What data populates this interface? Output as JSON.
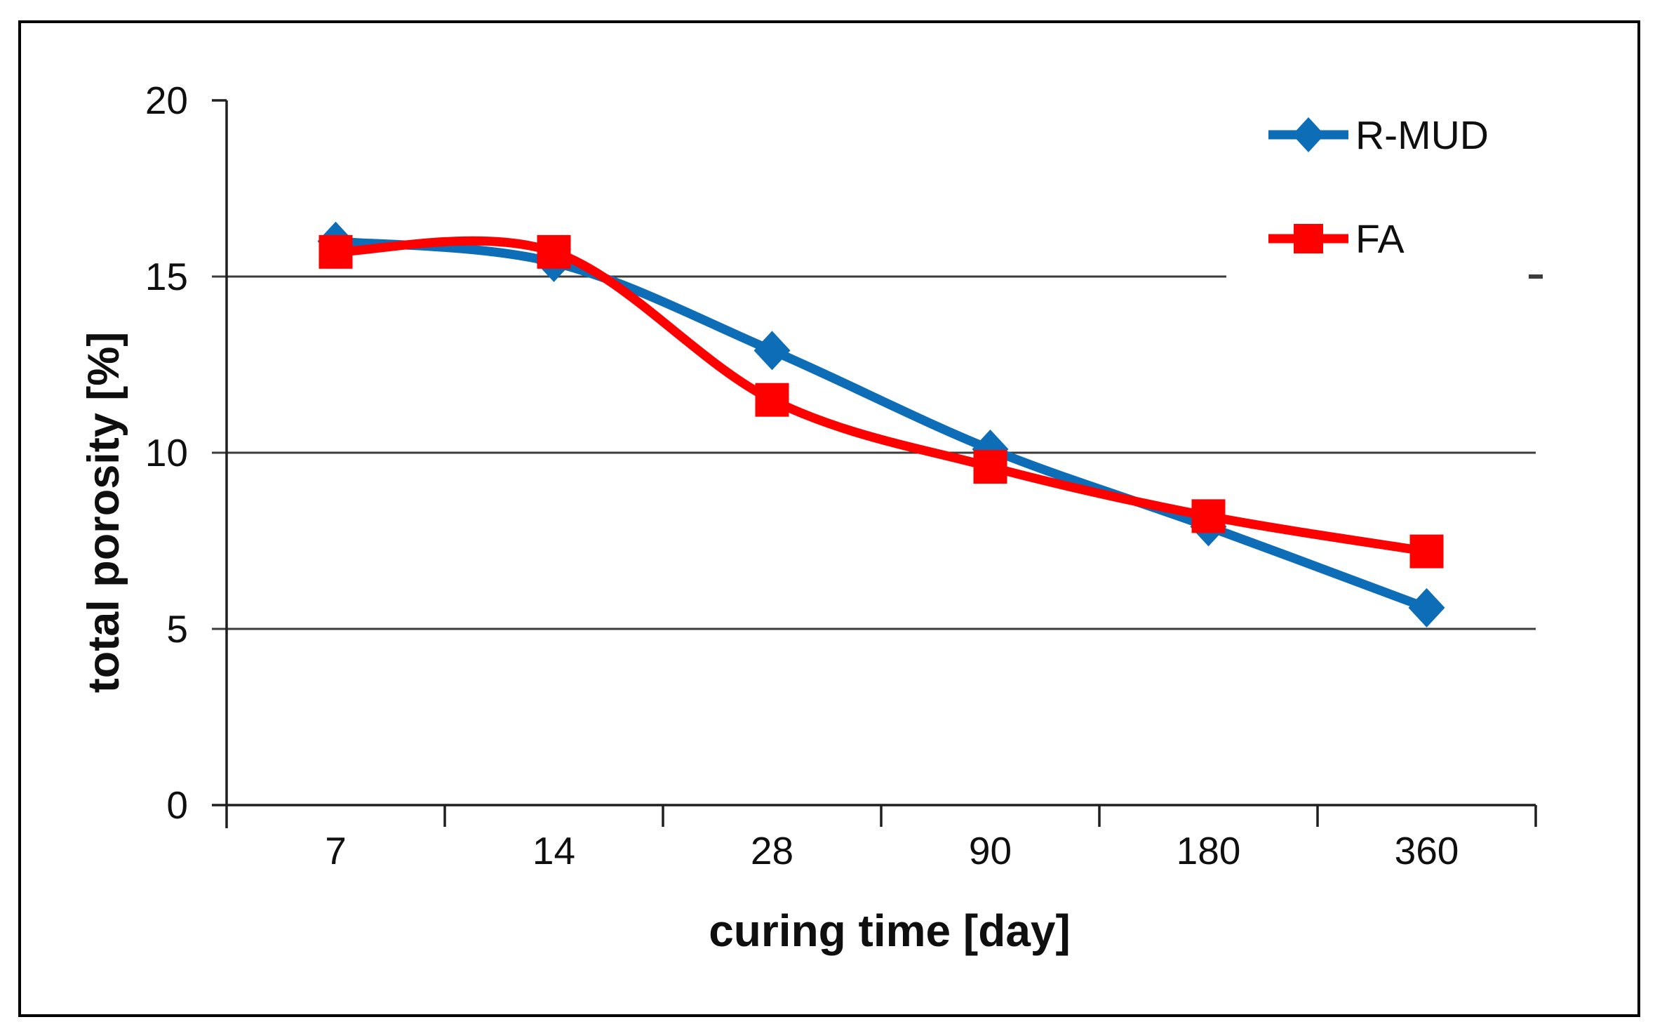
{
  "figure": {
    "background": "#ffffff",
    "border_color": "#000000"
  },
  "chart_data": {
    "type": "line",
    "line_style": "smooth",
    "categories": [
      "7",
      "14",
      "28",
      "90",
      "180",
      "360"
    ],
    "series": [
      {
        "name": "R-MUD",
        "color": "#0D6DB7",
        "marker": "diamond",
        "values": [
          16.0,
          15.4,
          12.9,
          10.1,
          7.9,
          5.6
        ]
      },
      {
        "name": "FA",
        "color": "#FF0000",
        "marker": "square",
        "values": [
          15.7,
          15.7,
          11.5,
          9.6,
          8.2,
          7.2
        ]
      }
    ],
    "title": "",
    "xlabel": "curing time [day]",
    "ylabel": "total porosity [%]",
    "ylim": [
      0,
      20
    ],
    "yticks": [
      0,
      5,
      10,
      15,
      20
    ],
    "gridlines": [
      5,
      10,
      15
    ],
    "grid": "horizontal",
    "legend_position": "top-right",
    "axis_color": "#1f1f1f",
    "gridline_color": "#3c3c3c",
    "text_color": "#0f0f0f"
  }
}
